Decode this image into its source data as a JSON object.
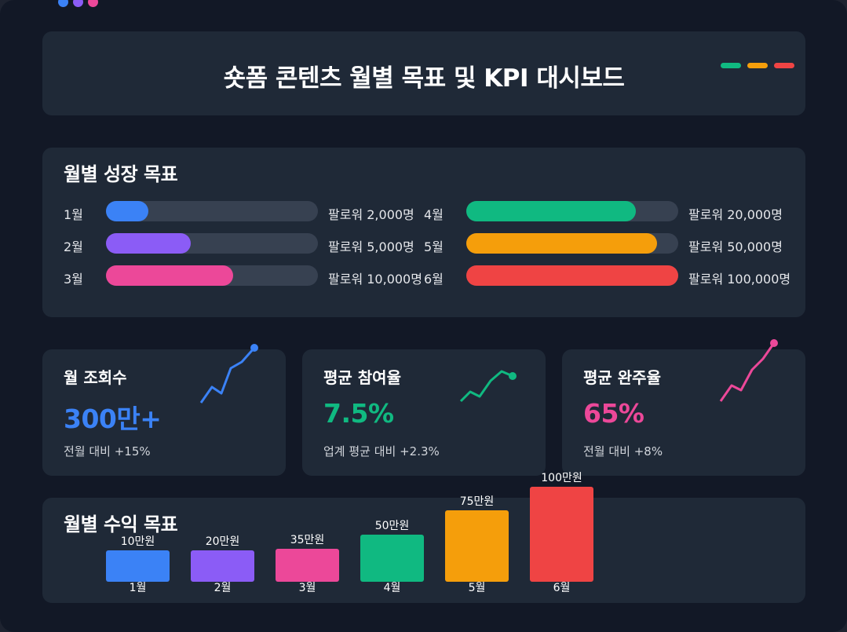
{
  "window": {
    "dot_colors": [
      "#3b82f6",
      "#8b5cf6",
      "#ec4899"
    ]
  },
  "header": {
    "title": "숏폼 콘텐츠 월별 목표 및 KPI 대시보드",
    "legend_colors": [
      "#10b981",
      "#f59e0b",
      "#ef4444"
    ]
  },
  "growth": {
    "title": "월별 성장 목표",
    "goals": [
      {
        "month": "1월",
        "target": "팔로워 2,000명",
        "progress": 0.2,
        "color": "#3b82f6"
      },
      {
        "month": "2월",
        "target": "팔로워 5,000명",
        "progress": 0.4,
        "color": "#8b5cf6"
      },
      {
        "month": "3월",
        "target": "팔로워 10,000명",
        "progress": 0.6,
        "color": "#ec4899"
      },
      {
        "month": "4월",
        "target": "팔로워 20,000명",
        "progress": 0.8,
        "color": "#10b981"
      },
      {
        "month": "5월",
        "target": "팔로워 50,000명",
        "progress": 0.9,
        "color": "#f59e0b"
      },
      {
        "month": "6월",
        "target": "팔로워 100,000명",
        "progress": 1.0,
        "color": "#ef4444"
      }
    ]
  },
  "kpis": [
    {
      "label": "월 조회수",
      "value": "300만+",
      "sub": "전월 대비 +15%",
      "color": "#3b82f6",
      "trend": "up"
    },
    {
      "label": "평균 참여율",
      "value": "7.5%",
      "sub": "업계 평균 대비 +2.3%",
      "color": "#10b981",
      "trend": "up"
    },
    {
      "label": "평균 완주율",
      "value": "65%",
      "sub": "전월 대비 +8%",
      "color": "#ec4899",
      "trend": "up"
    }
  ],
  "revenue": {
    "title": "월별 수익 목표",
    "chart_data": {
      "type": "bar",
      "categories": [
        "1월",
        "2월",
        "3월",
        "4월",
        "5월",
        "6월"
      ],
      "values": [
        10,
        20,
        35,
        50,
        75,
        100
      ],
      "value_labels": [
        "10만원",
        "20만원",
        "35만원",
        "50만원",
        "75만원",
        "100만원"
      ],
      "colors": [
        "#3b82f6",
        "#8b5cf6",
        "#ec4899",
        "#10b981",
        "#f59e0b",
        "#ef4444"
      ]
    }
  }
}
